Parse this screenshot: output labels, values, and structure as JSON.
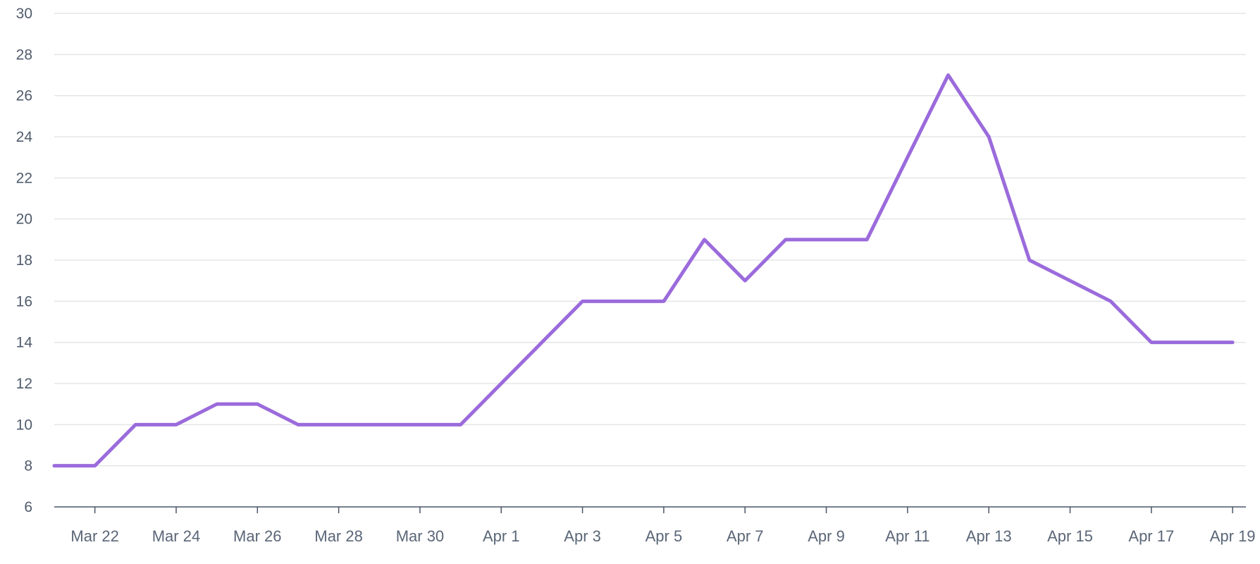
{
  "chart_data": {
    "type": "line",
    "title": "",
    "xlabel": "",
    "ylabel": "",
    "x": [
      "2020-03-21",
      "2020-03-22",
      "2020-03-23",
      "2020-03-24",
      "2020-03-25",
      "2020-03-26",
      "2020-03-27",
      "2020-03-28",
      "2020-03-29",
      "2020-03-30",
      "2020-03-31",
      "2020-04-01",
      "2020-04-02",
      "2020-04-03",
      "2020-04-04",
      "2020-04-05",
      "2020-04-06",
      "2020-04-07",
      "2020-04-08",
      "2020-04-09",
      "2020-04-10",
      "2020-04-11",
      "2020-04-12",
      "2020-04-13",
      "2020-04-14",
      "2020-04-15",
      "2020-04-16",
      "2020-04-17",
      "2020-04-18",
      "2020-04-19"
    ],
    "series": [
      {
        "values": [
          8,
          8,
          10,
          10,
          11,
          11,
          10,
          10,
          10,
          10,
          10,
          12,
          14,
          16,
          16,
          16,
          19,
          17,
          19,
          19,
          19,
          23,
          27,
          24,
          18,
          17,
          16,
          14,
          14,
          14
        ]
      }
    ],
    "x_ticks": [
      "Mar 22",
      "Mar 24",
      "Mar 26",
      "Mar 28",
      "Mar 30",
      "Apr 1",
      "Apr 3",
      "Apr 5",
      "Apr 7",
      "Apr 9",
      "Apr 11",
      "Apr 13",
      "Apr 15",
      "Apr 17",
      "Apr 19"
    ],
    "x_tick_dates": [
      "2020-03-22",
      "2020-03-24",
      "2020-03-26",
      "2020-03-28",
      "2020-03-30",
      "2020-04-01",
      "2020-04-03",
      "2020-04-05",
      "2020-04-07",
      "2020-04-09",
      "2020-04-11",
      "2020-04-13",
      "2020-04-15",
      "2020-04-17",
      "2020-04-19"
    ],
    "y_ticks": [
      6,
      8,
      10,
      12,
      14,
      16,
      18,
      20,
      22,
      24,
      26,
      28,
      30
    ],
    "ylim": [
      6,
      30
    ],
    "grid": true,
    "colors": {
      "line": "#9b6bdc",
      "grid": "#e3e5e8",
      "axis": "#4a5568",
      "tick_text": "#5a6677"
    }
  }
}
